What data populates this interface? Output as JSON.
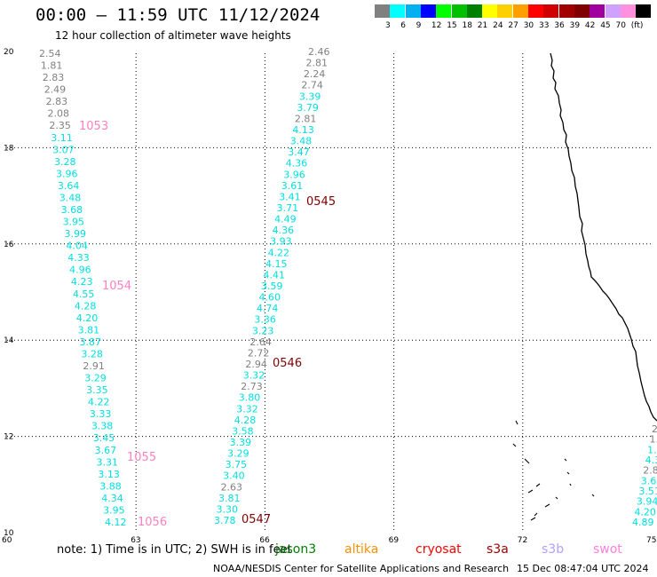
{
  "header": {
    "title": "00:00 – 11:59 UTC 11/12/2024",
    "subtitle": "12 hour collection of altimeter wave heights"
  },
  "legend": {
    "unit": "(ft)",
    "colors": [
      "#808080",
      "#00ffff",
      "#00b0f0",
      "#0000ff",
      "#00ff00",
      "#00c000",
      "#008000",
      "#ffff00",
      "#ffd000",
      "#ffa000",
      "#ff0000",
      "#d00000",
      "#a00000",
      "#800000",
      "#a000a0",
      "#d0a0ff",
      "#ff90e0",
      "#000000"
    ],
    "labels": [
      "3",
      "6",
      "9",
      "12",
      "15",
      "18",
      "21",
      "24",
      "27",
      "30",
      "33",
      "36",
      "39",
      "42",
      "45",
      "70"
    ]
  },
  "axes": {
    "x_ticks": [
      "60",
      "63",
      "66",
      "69",
      "72",
      "75"
    ],
    "y_ticks": [
      "20",
      "18",
      "16",
      "14",
      "12",
      "10"
    ]
  },
  "tracks": [
    {
      "time": "1053",
      "color": "#ff80c0"
    },
    {
      "time": "1054",
      "color": "#ff80c0"
    },
    {
      "time": "1055",
      "color": "#ff80c0"
    },
    {
      "time": "1056",
      "color": "#ff80c0"
    },
    {
      "time": "0545",
      "color": "#800000"
    },
    {
      "time": "0546",
      "color": "#800000"
    },
    {
      "time": "0547",
      "color": "#800000"
    }
  ],
  "passes": [
    {
      "id": "A",
      "values": [
        "2.54",
        "1.81",
        "2.83",
        "2.49",
        "2.83",
        "2.08",
        "2.35",
        "3.11",
        "3.07",
        "3.28",
        "3.96",
        "3.64",
        "3.48",
        "3.68",
        "3.95",
        "3.99",
        "4.04",
        "4.33",
        "4.96",
        "4.23",
        "4.55",
        "4.28",
        "4.20",
        "3.81",
        "3.87",
        "3.28",
        "2.91",
        "3.29",
        "3.35",
        "4.22",
        "3.33",
        "3.38",
        "3.45",
        "3.67",
        "3.31",
        "3.13",
        "3.88",
        "4.34",
        "3.95",
        "4.12"
      ],
      "colors": [
        "#808080",
        "#808080",
        "#808080",
        "#808080",
        "#808080",
        "#808080",
        "#808080",
        "#00e0e0",
        "#00e0e0",
        "#00e0e0",
        "#00e0e0",
        "#00e0e0",
        "#00e0e0",
        "#00e0e0",
        "#00e0e0",
        "#00e0e0",
        "#00e0e0",
        "#00e0e0",
        "#00e0e0",
        "#00e0e0",
        "#00e0e0",
        "#00e0e0",
        "#00e0e0",
        "#00e0e0",
        "#00e0e0",
        "#00e0e0",
        "#808080",
        "#00e0e0",
        "#00e0e0",
        "#00e0e0",
        "#00e0e0",
        "#00e0e0",
        "#00e0e0",
        "#00e0e0",
        "#00e0e0",
        "#00e0e0",
        "#00e0e0",
        "#00e0e0",
        "#00e0e0",
        "#00e0e0"
      ]
    },
    {
      "id": "B",
      "values": [
        "2.46",
        "2.81",
        "2.24",
        "2.74",
        "3.39",
        "3.79",
        "2.81",
        "4.13",
        "3.48",
        "3.47",
        "4.36",
        "3.96",
        "3.61",
        "3.41",
        "3.71",
        "4.49",
        "4.36",
        "3.93",
        "4.22",
        "4.15",
        "4.41",
        "3.59",
        "4.60",
        "4.74",
        "3.36",
        "3.23",
        "2.64",
        "2.72",
        "2.94",
        "3.32",
        "2.73",
        "3.80",
        "3.32",
        "4.28",
        "3.58",
        "3.39",
        "3.29",
        "3.75",
        "3.40",
        "2.63",
        "3.81",
        "3.30",
        "3.78"
      ],
      "colors": [
        "#808080",
        "#808080",
        "#808080",
        "#808080",
        "#00e0e0",
        "#00e0e0",
        "#808080",
        "#00e0e0",
        "#00e0e0",
        "#00e0e0",
        "#00e0e0",
        "#00e0e0",
        "#00e0e0",
        "#00e0e0",
        "#00e0e0",
        "#00e0e0",
        "#00e0e0",
        "#00e0e0",
        "#00e0e0",
        "#00e0e0",
        "#00e0e0",
        "#00e0e0",
        "#00e0e0",
        "#00e0e0",
        "#00e0e0",
        "#00e0e0",
        "#808080",
        "#808080",
        "#808080",
        "#00e0e0",
        "#808080",
        "#00e0e0",
        "#00e0e0",
        "#00e0e0",
        "#00e0e0",
        "#00e0e0",
        "#00e0e0",
        "#00e0e0",
        "#00e0e0",
        "#808080",
        "#00e0e0",
        "#00e0e0",
        "#00e0e0"
      ]
    },
    {
      "id": "C",
      "values": [
        "2",
        "1.",
        "1.6",
        "4.3",
        "2.8",
        "3.68",
        "3.51",
        "3.94",
        "4.20",
        "4.89"
      ],
      "colors": [
        "#808080",
        "#808080",
        "#00e0e0",
        "#00e0e0",
        "#808080",
        "#00e0e0",
        "#00e0e0",
        "#00e0e0",
        "#00e0e0",
        "#00e0e0"
      ]
    }
  ],
  "footer": {
    "note": "note:  1) Time is in UTC;  2) SWH is in feet",
    "satellites": [
      {
        "name": "jason3",
        "color": "#008000"
      },
      {
        "name": "altika",
        "color": "#ff9000"
      },
      {
        "name": "cryosat",
        "color": "#ff0000"
      },
      {
        "name": "s3a",
        "color": "#a00000"
      },
      {
        "name": "s3b",
        "color": "#b0a0ff"
      },
      {
        "name": "swot",
        "color": "#ff80e0"
      }
    ],
    "credit": "NOAA/NESDIS Center for Satellite Applications and Research",
    "timestamp": "15 Dec 08:47:04 UTC 2024"
  }
}
